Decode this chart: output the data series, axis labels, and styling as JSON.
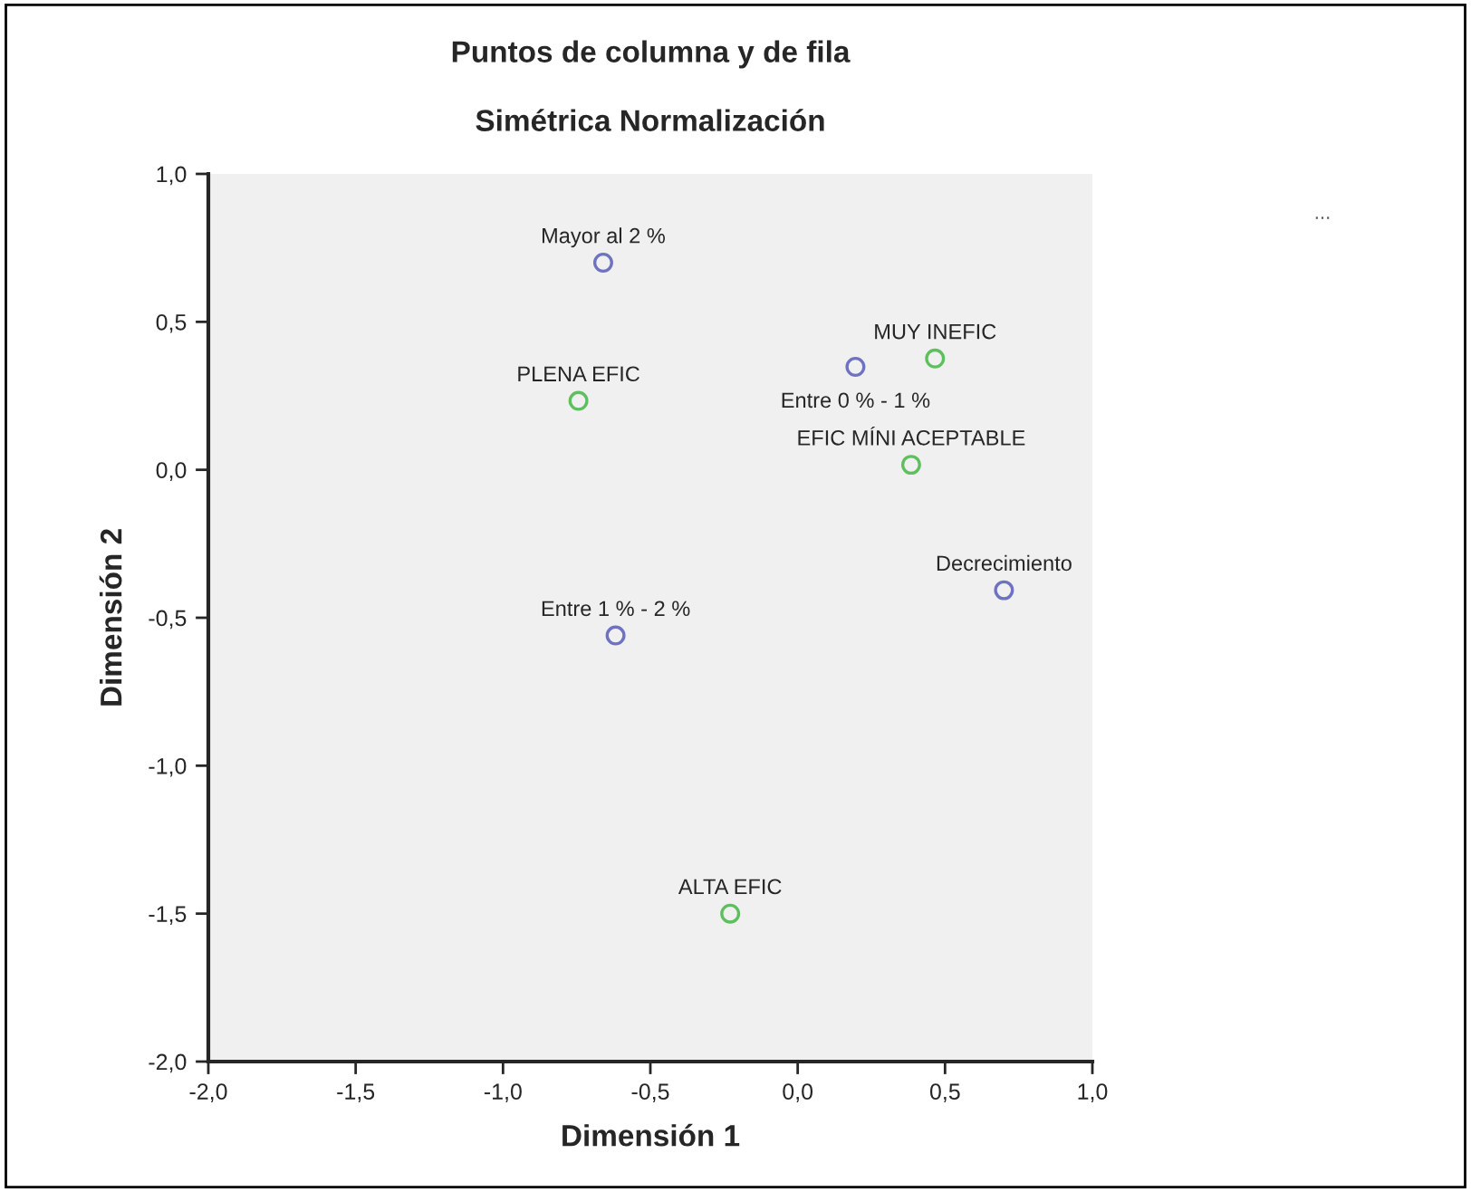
{
  "chart_data": {
    "type": "scatter",
    "title": "Puntos de columna y de fila",
    "subtitle": "Simétrica Normalización",
    "xlabel": "Dimensión 1",
    "ylabel": "Dimensión 2",
    "series": [
      {
        "color": "#6e72c0",
        "x": [
          -0.66,
          0.196,
          -0.618,
          0.7
        ],
        "values": [
          0.7,
          0.348,
          -0.56,
          -0.407
        ]
      },
      {
        "color": "#5fbf5f",
        "x": [
          -0.744,
          0.466,
          0.385,
          -0.229
        ],
        "values": [
          0.233,
          0.376,
          0.017,
          -1.5
        ]
      }
    ],
    "annotations": [
      {
        "text": "Mayor al 2 %",
        "x": -0.66,
        "y": 0.7
      },
      {
        "text": "Entre 0 % - 1 %",
        "x": 0.196,
        "y": 0.348
      },
      {
        "text": "Entre 1 % - 2 %",
        "x": -0.618,
        "y": -0.56
      },
      {
        "text": "Decrecimiento",
        "x": 0.7,
        "y": -0.407
      },
      {
        "text": "PLENA EFIC",
        "x": -0.744,
        "y": 0.233
      },
      {
        "text": "MUY INEFIC",
        "x": 0.466,
        "y": 0.376
      },
      {
        "text": "EFIC MÍNI ACEPTABLE",
        "x": 0.385,
        "y": 0.017
      },
      {
        "text": "ALTA EFIC",
        "x": -0.229,
        "y": -1.5
      },
      "..."
    ],
    "xlim": [
      -2,
      1
    ],
    "ylim": [
      -2,
      1
    ],
    "xticks": [
      {
        "value": -2,
        "label": "-2,0"
      },
      {
        "value": -1.5,
        "label": "-1,5"
      },
      {
        "value": -1,
        "label": "-1,0"
      },
      {
        "value": -0.5,
        "label": "-0,5"
      },
      {
        "value": 0,
        "label": "0,0"
      },
      {
        "value": 0.5,
        "label": "0,5"
      },
      {
        "value": 1,
        "label": "1,0"
      }
    ],
    "yticks": [
      {
        "value": -2,
        "label": "-2,0"
      },
      {
        "value": -1.5,
        "label": "-1,5"
      },
      {
        "value": -1,
        "label": "-1,0"
      },
      {
        "value": -0.5,
        "label": "-0,5"
      },
      {
        "value": 0,
        "label": "0,0"
      },
      {
        "value": 0.5,
        "label": "0,5"
      },
      {
        "value": 1,
        "label": "1,0"
      }
    ],
    "marker": "circle",
    "grid": false
  }
}
